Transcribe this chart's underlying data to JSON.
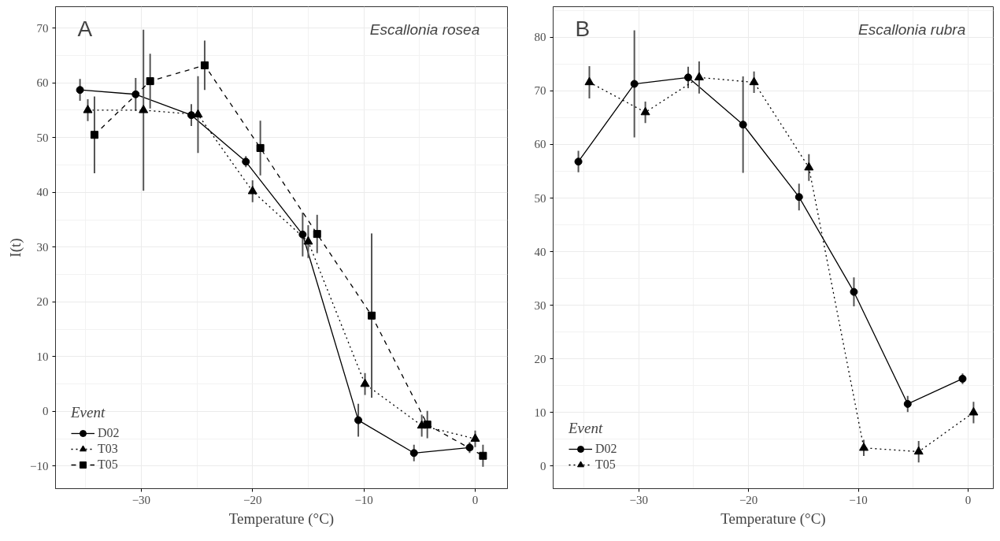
{
  "chart_data": [
    {
      "type": "line",
      "xlabel": "Temperature (°C)",
      "ylabel": "I(t)",
      "legend_title": "Event",
      "annotations": [
        "A",
        "Escallonia  rosea"
      ],
      "xlim": [
        -37.7,
        2.9
      ],
      "ylim": [
        -14.1,
        73.9
      ],
      "xticks": [
        -30,
        -20,
        -10,
        0
      ],
      "yticks": [
        -10,
        0,
        10,
        20,
        30,
        40,
        50,
        60,
        70
      ],
      "grid": true,
      "legend": "bottom left",
      "series": [
        {
          "name": "D02",
          "color": "#000000",
          "marker": "circle",
          "line_style": "solid",
          "x": [
            -35.5,
            -30.5,
            -25.5,
            -20.6,
            -15.5,
            -10.5,
            -5.5,
            -0.5
          ],
          "values": [
            58.7,
            57.9,
            54.1,
            45.6,
            32.3,
            -1.6,
            -7.6,
            -6.6
          ],
          "errors": [
            2,
            3,
            2,
            1,
            4,
            3,
            1.5,
            1
          ]
        },
        {
          "name": "T03",
          "color": "#000000",
          "marker": "triangle",
          "line_style": "dotted",
          "x": [
            -34.8,
            -29.8,
            -24.9,
            -20.0,
            -15.0,
            -9.9,
            -4.8,
            0.0
          ],
          "values": [
            55.0,
            55.0,
            54.2,
            40.2,
            31.0,
            5.0,
            -2.6,
            -5.0
          ],
          "errors": [
            2,
            14.7,
            7,
            2,
            3,
            2,
            2,
            1.5
          ]
        },
        {
          "name": "T05",
          "color": "#000000",
          "marker": "square",
          "line_style": "dashed",
          "x": [
            -34.2,
            -29.2,
            -24.3,
            -19.3,
            -14.2,
            -9.3,
            -4.3,
            0.7
          ],
          "values": [
            50.5,
            60.3,
            63.2,
            48.1,
            32.4,
            17.5,
            -2.4,
            -8.1
          ],
          "errors": [
            7,
            5,
            4.5,
            5,
            3.5,
            15,
            2.5,
            2
          ]
        }
      ]
    },
    {
      "type": "line",
      "xlabel": "Temperature (°C)",
      "legend_title": "Event",
      "annotations": [
        "B",
        "Escallonia  rubra"
      ],
      "xlim": [
        -37.8,
        2.3
      ],
      "ylim": [
        -4.2,
        85.7
      ],
      "xticks": [
        -30,
        -20,
        -10,
        0
      ],
      "yticks": [
        0,
        10,
        20,
        30,
        40,
        50,
        60,
        70,
        80
      ],
      "grid": true,
      "legend": "bottom left",
      "series": [
        {
          "name": "D02",
          "color": "#000000",
          "marker": "circle",
          "line_style": "solid",
          "x": [
            -35.5,
            -30.4,
            -25.5,
            -20.5,
            -15.4,
            -10.4,
            -5.5,
            -0.5
          ],
          "values": [
            56.8,
            71.3,
            72.5,
            63.7,
            50.2,
            32.5,
            11.6,
            16.3
          ],
          "errors": [
            2,
            10,
            2,
            9,
            2.5,
            2.7,
            1.5,
            1
          ]
        },
        {
          "name": "T05",
          "color": "#000000",
          "marker": "triangle",
          "line_style": "dotted",
          "x": [
            -34.5,
            -29.4,
            -24.5,
            -19.5,
            -14.5,
            -9.5,
            -4.5,
            0.5
          ],
          "values": [
            71.6,
            66.0,
            72.5,
            71.6,
            55.7,
            3.4,
            2.7,
            10.0
          ],
          "errors": [
            3,
            2,
            3,
            2,
            2.5,
            1.5,
            2,
            2
          ]
        }
      ]
    }
  ]
}
